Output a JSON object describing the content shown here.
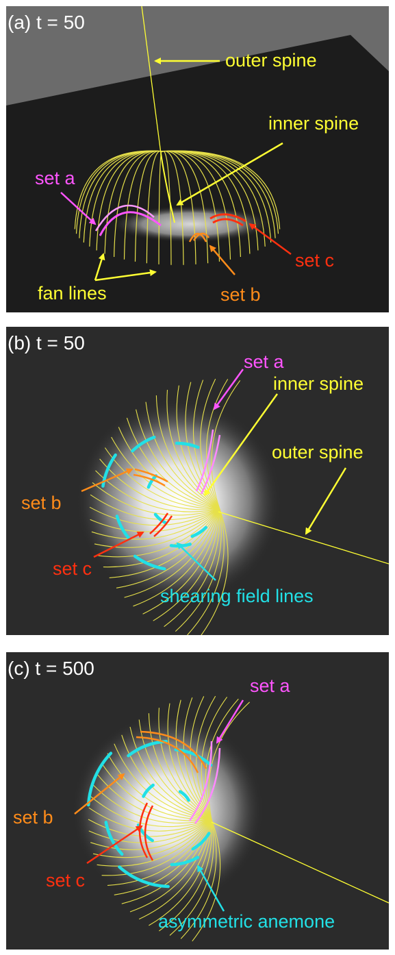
{
  "colors": {
    "background_a": "#1c1c1c",
    "plane_a": "#6b6b6b",
    "background_bc": "#2b2b2b",
    "fan": "#e6e04a",
    "spine": "#ffff33",
    "set_a": "#ff55ff",
    "set_b": "#ff8c1a",
    "set_c": "#ff3010",
    "shearing": "#22e0e6",
    "white": "#ffffff"
  },
  "panel_a": {
    "title": "(a)  t = 50",
    "labels": {
      "outer_spine": "outer spine",
      "inner_spine": "inner spine",
      "set_a": "set a",
      "fan_lines": "fan lines",
      "set_b": "set b",
      "set_c": "set c"
    }
  },
  "panel_b": {
    "title": "(b)  t = 50",
    "labels": {
      "set_a": "set a",
      "inner_spine": "inner spine",
      "outer_spine": "outer spine",
      "set_b": "set b",
      "set_c": "set c",
      "shearing": "shearing field lines"
    }
  },
  "panel_c": {
    "title": "(c) t = 500",
    "labels": {
      "set_a": "set a",
      "set_b": "set b",
      "set_c": "set c",
      "anemone": "asymmetric anemone"
    }
  }
}
